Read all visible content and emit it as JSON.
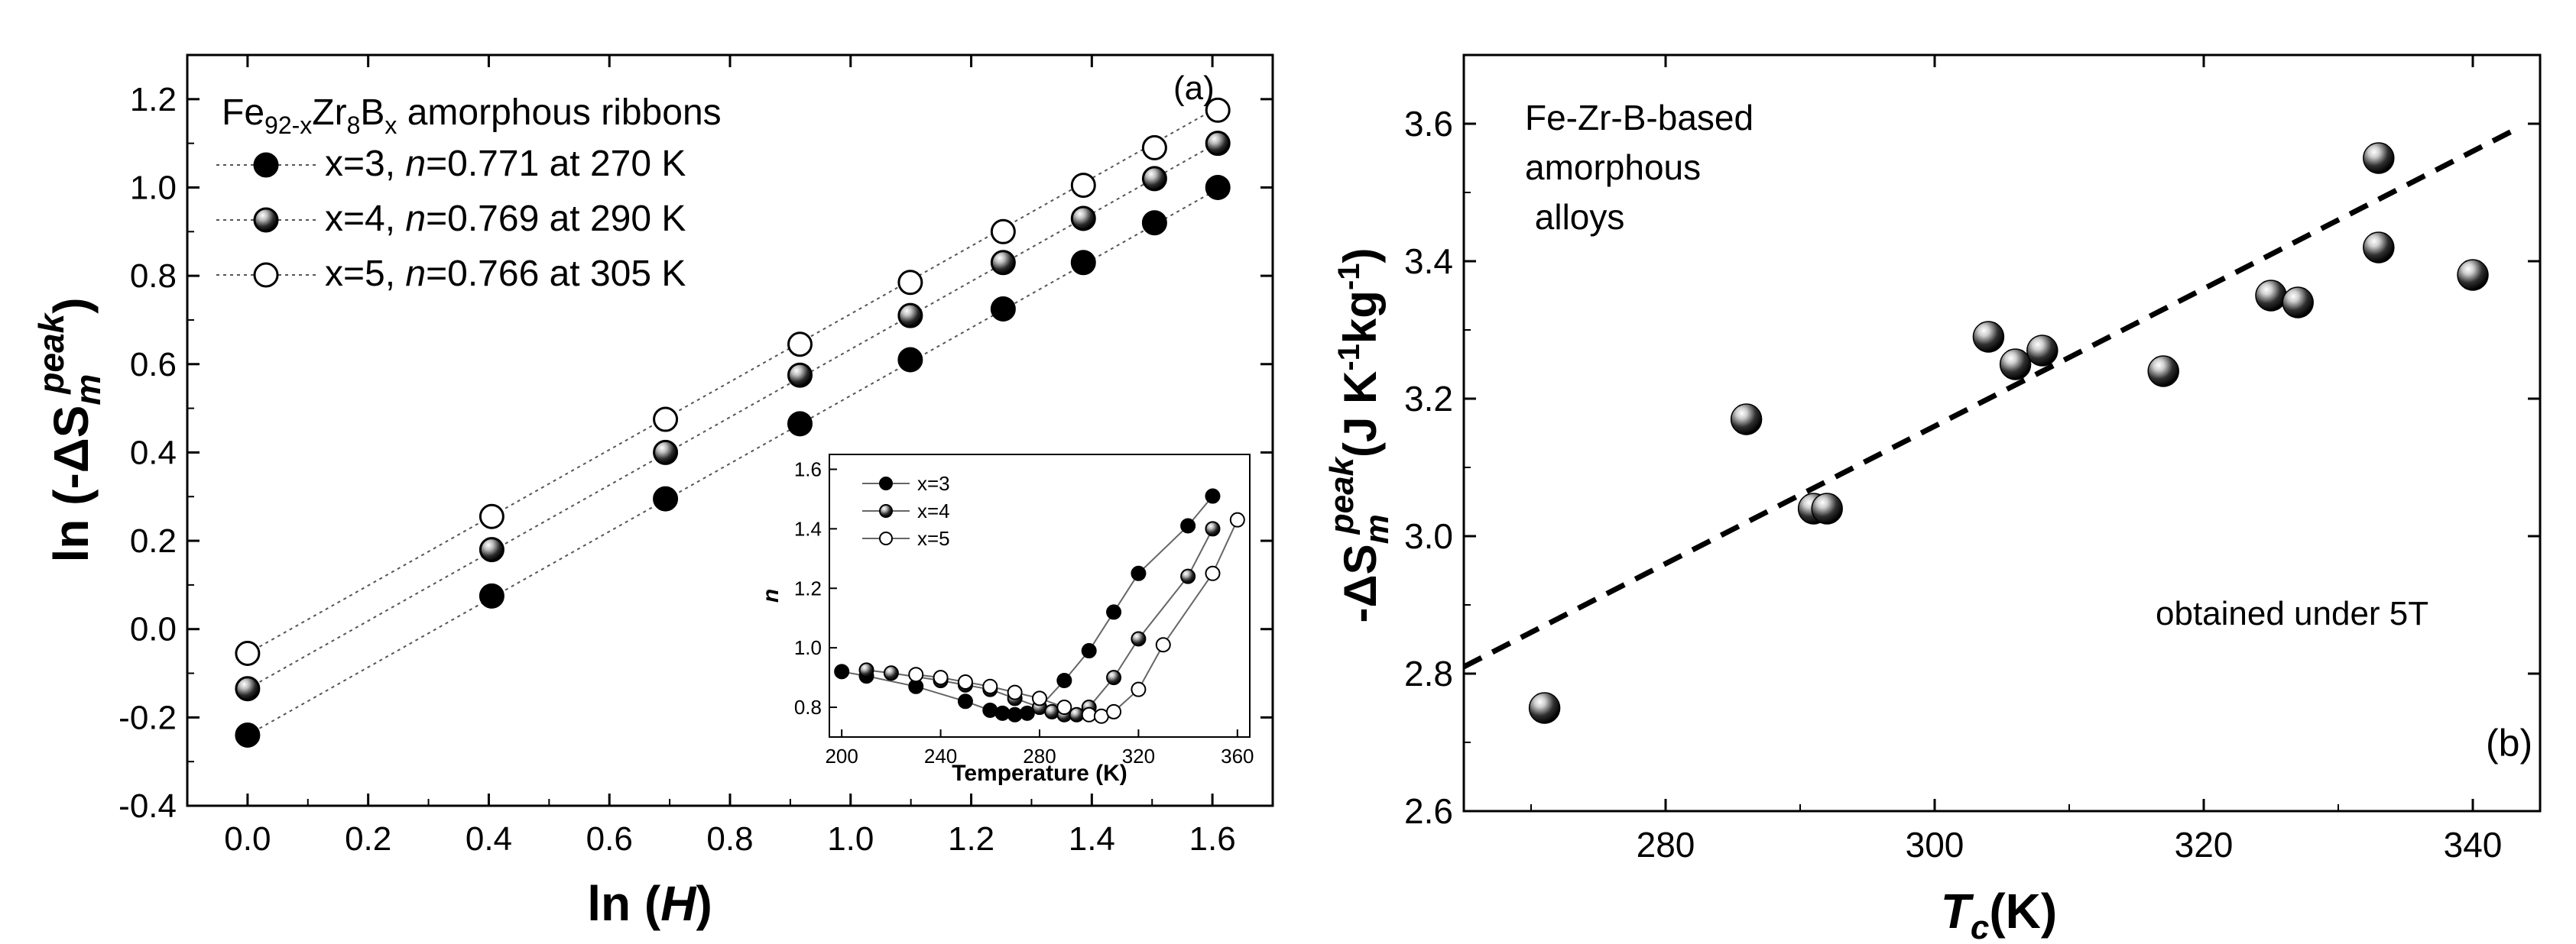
{
  "chart_data": [
    {
      "type": "scatter",
      "panel": "(a)",
      "xlabel": "ln (H)",
      "ylabel": "ln (-ΔS_m^peak)",
      "xlim": [
        -0.1,
        1.7
      ],
      "ylim": [
        -0.4,
        1.3
      ],
      "xticks": [
        0.0,
        0.2,
        0.4,
        0.6,
        0.8,
        1.0,
        1.2,
        1.4,
        1.6
      ],
      "xtick_labels": [
        "0.0",
        "0.2",
        "0.4",
        "0.6",
        "0.8",
        "1.0",
        "1.2",
        "1.4",
        "1.6"
      ],
      "yticks": [
        -0.4,
        -0.2,
        0.0,
        0.2,
        0.4,
        0.6,
        0.8,
        1.0,
        1.2
      ],
      "ytick_labels": [
        "-0.4",
        "-0.2",
        "0.0",
        "0.2",
        "0.4",
        "0.6",
        "0.8",
        "1.0",
        "1.2"
      ],
      "legend_title": {
        "prefix": "Fe",
        "sub1": "92-x",
        "mid1": "Zr",
        "sub2": "8",
        "mid2": "B",
        "sub3": "x",
        "suffix": " amorphous ribbons"
      },
      "x": [
        0.0,
        0.405,
        0.693,
        0.916,
        1.099,
        1.253,
        1.386,
        1.504,
        1.609
      ],
      "series": [
        {
          "name": "x=3",
          "n_value": "0.771",
          "at": "at 270 K",
          "marker": "filled",
          "values": [
            -0.24,
            0.075,
            0.295,
            0.465,
            0.61,
            0.725,
            0.83,
            0.92,
            1.0
          ]
        },
        {
          "name": "x=4",
          "n_value": "0.769",
          "at": "at 290 K",
          "marker": "shaded",
          "values": [
            -0.135,
            0.18,
            0.4,
            0.575,
            0.71,
            0.83,
            0.93,
            1.02,
            1.1
          ]
        },
        {
          "name": "x=5",
          "n_value": "0.766",
          "at": "at 305 K",
          "marker": "open",
          "values": [
            -0.055,
            0.255,
            0.475,
            0.645,
            0.785,
            0.9,
            1.005,
            1.09,
            1.175
          ]
        }
      ],
      "fit_lines": [
        {
          "series": "x=3",
          "x": [
            0.0,
            1.62
          ],
          "y": [
            -0.24,
            1.005
          ]
        },
        {
          "series": "x=4",
          "x": [
            0.0,
            1.62
          ],
          "y": [
            -0.135,
            1.11
          ]
        },
        {
          "series": "x=5",
          "x": [
            0.0,
            1.62
          ],
          "y": [
            -0.055,
            1.19
          ]
        }
      ],
      "panel_label": "(a)",
      "inset": {
        "type": "line",
        "xlabel": "Temperature (K)",
        "ylabel": "n",
        "xlim": [
          195,
          365
        ],
        "ylim": [
          0.7,
          1.65
        ],
        "xticks": [
          200,
          240,
          280,
          320,
          360
        ],
        "xtick_labels": [
          "200",
          "240",
          "280",
          "320",
          "360"
        ],
        "yticks": [
          0.8,
          1.0,
          1.2,
          1.4,
          1.6
        ],
        "ytick_labels": [
          "0.8",
          "1.0",
          "1.2",
          "1.4",
          "1.6"
        ],
        "series": [
          {
            "name": "x=3",
            "marker": "filled",
            "x": [
              200,
              210,
              230,
              250,
              260,
              265,
              270,
              275,
              280,
              290,
              300,
              310,
              320,
              340,
              350
            ],
            "y": [
              0.92,
              0.905,
              0.87,
              0.82,
              0.79,
              0.78,
              0.775,
              0.78,
              0.8,
              0.89,
              0.99,
              1.12,
              1.25,
              1.41,
              1.51
            ]
          },
          {
            "name": "x=4",
            "marker": "shaded",
            "x": [
              210,
              220,
              240,
              250,
              260,
              270,
              280,
              285,
              290,
              295,
              300,
              310,
              320,
              340,
              350
            ],
            "y": [
              0.925,
              0.915,
              0.89,
              0.875,
              0.86,
              0.83,
              0.8,
              0.785,
              0.775,
              0.775,
              0.8,
              0.9,
              1.03,
              1.24,
              1.4
            ]
          },
          {
            "name": "x=5",
            "marker": "open",
            "x": [
              230,
              240,
              250,
              260,
              270,
              280,
              290,
              300,
              305,
              310,
              320,
              330,
              350,
              360
            ],
            "y": [
              0.91,
              0.9,
              0.885,
              0.87,
              0.85,
              0.83,
              0.8,
              0.775,
              0.77,
              0.785,
              0.86,
              1.01,
              1.25,
              1.43
            ]
          }
        ]
      }
    },
    {
      "type": "scatter",
      "panel": "(b)",
      "xlabel_main": "T",
      "xlabel_sub": "c",
      "xlabel_suffix": "(K)",
      "ylabel": "-ΔS_m^peak (J K^-1 kg^-1)",
      "xlim": [
        265,
        345
      ],
      "ylim": [
        2.6,
        3.7
      ],
      "xticks": [
        280,
        300,
        320,
        340
      ],
      "xtick_labels": [
        "280",
        "300",
        "320",
        "340"
      ],
      "yticks": [
        2.6,
        2.8,
        3.0,
        3.2,
        3.4,
        3.6
      ],
      "ytick_labels": [
        "2.6",
        "2.8",
        "3.0",
        "3.2",
        "3.4",
        "3.6"
      ],
      "x": [
        271,
        286,
        291,
        292,
        304,
        306,
        308,
        317,
        325,
        327,
        333,
        333,
        340
      ],
      "y": [
        2.75,
        3.17,
        3.04,
        3.04,
        3.29,
        3.25,
        3.27,
        3.24,
        3.35,
        3.34,
        3.55,
        3.42,
        3.38
      ],
      "trend_line": {
        "x": [
          265,
          343
        ],
        "y": [
          2.81,
          3.59
        ],
        "style": "dashed"
      },
      "annotation_lines": [
        "Fe-Zr-B-based",
        "amorphous",
        " alloys"
      ],
      "note": "obtained under 5T",
      "panel_label": "(b)"
    }
  ]
}
